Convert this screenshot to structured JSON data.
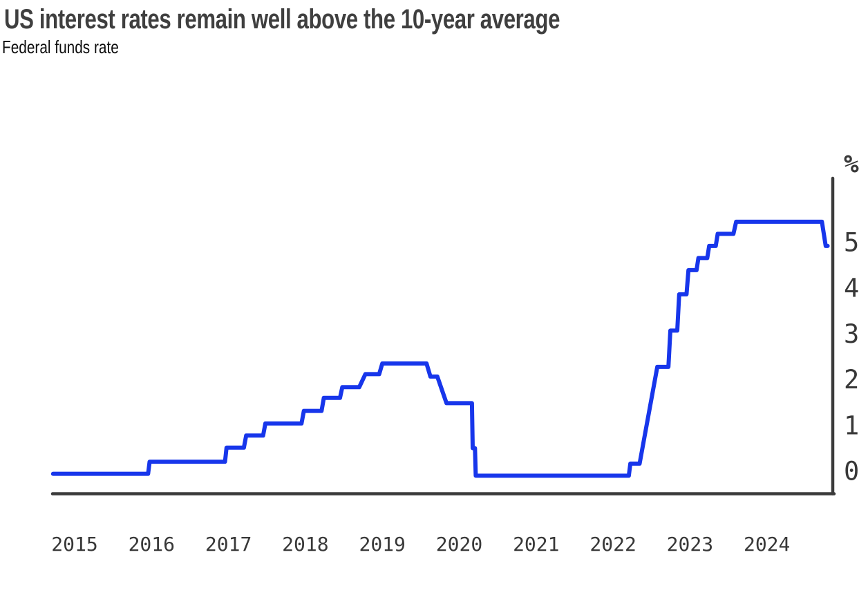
{
  "header": {
    "title": "US interest rates remain well above the 10-year average",
    "subtitle": "Federal funds rate"
  },
  "chart_data": {
    "type": "line",
    "title": "US interest rates remain well above the 10-year average",
    "subtitle": "Federal funds rate",
    "y_unit_label": "%",
    "x_ticks": [
      2015,
      2016,
      2017,
      2018,
      2019,
      2020,
      2021,
      2022,
      2023,
      2024
    ],
    "y_ticks": [
      0,
      1,
      2,
      3,
      4,
      5
    ],
    "x_domain": [
      2014.72,
      2024.85
    ],
    "y_domain": [
      0,
      6
    ],
    "grid": false,
    "y_axis_side": "right",
    "legend": "none",
    "series": [
      {
        "name": "Federal funds rate",
        "color": "#1736eb",
        "points": [
          [
            2014.72,
            0.12
          ],
          [
            2015.955,
            0.12
          ],
          [
            2015.975,
            0.37
          ],
          [
            2016.955,
            0.37
          ],
          [
            2016.975,
            0.66
          ],
          [
            2017.2,
            0.66
          ],
          [
            2017.23,
            0.91
          ],
          [
            2017.45,
            0.91
          ],
          [
            2017.48,
            1.16
          ],
          [
            2017.95,
            1.16
          ],
          [
            2017.98,
            1.42
          ],
          [
            2018.21,
            1.42
          ],
          [
            2018.24,
            1.69
          ],
          [
            2018.45,
            1.69
          ],
          [
            2018.48,
            1.91
          ],
          [
            2018.7,
            1.91
          ],
          [
            2018.78,
            2.18
          ],
          [
            2018.96,
            2.18
          ],
          [
            2019.0,
            2.4
          ],
          [
            2019.575,
            2.4
          ],
          [
            2019.625,
            2.13
          ],
          [
            2019.715,
            2.13
          ],
          [
            2019.835,
            1.58
          ],
          [
            2020.165,
            1.58
          ],
          [
            2020.175,
            0.65
          ],
          [
            2020.205,
            0.65
          ],
          [
            2020.215,
            0.08
          ],
          [
            2022.205,
            0.08
          ],
          [
            2022.225,
            0.33
          ],
          [
            2022.345,
            0.33
          ],
          [
            2022.575,
            2.33
          ],
          [
            2022.72,
            2.33
          ],
          [
            2022.745,
            3.08
          ],
          [
            2022.835,
            3.08
          ],
          [
            2022.86,
            3.83
          ],
          [
            2022.955,
            3.83
          ],
          [
            2022.98,
            4.33
          ],
          [
            2023.085,
            4.33
          ],
          [
            2023.11,
            4.58
          ],
          [
            2023.225,
            4.58
          ],
          [
            2023.25,
            4.83
          ],
          [
            2023.335,
            4.83
          ],
          [
            2023.36,
            5.08
          ],
          [
            2023.565,
            5.08
          ],
          [
            2023.6,
            5.33
          ],
          [
            2024.715,
            5.33
          ],
          [
            2024.765,
            4.83
          ],
          [
            2024.79,
            4.83
          ]
        ]
      }
    ]
  },
  "colors": {
    "line": "#1736eb",
    "axis": "#3b3b3b",
    "tick_label": "#383838",
    "title": "#3f3f3f",
    "subtitle": "#0d0d0d",
    "background": "#ffffff"
  }
}
